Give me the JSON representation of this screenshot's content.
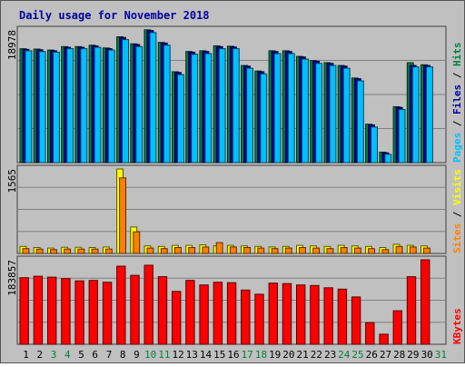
{
  "chart_data": {
    "type": "bar",
    "title": "Daily usage for November 2018",
    "categories": [
      "1",
      "2",
      "3",
      "4",
      "5",
      "6",
      "7",
      "8",
      "9",
      "10",
      "11",
      "12",
      "13",
      "14",
      "15",
      "16",
      "17",
      "18",
      "19",
      "20",
      "21",
      "22",
      "23",
      "24",
      "25",
      "26",
      "27",
      "28",
      "29",
      "30",
      "31"
    ],
    "weekend_days": [
      "3",
      "4",
      "10",
      "11",
      "17",
      "18",
      "24",
      "25",
      "31"
    ],
    "panels": [
      {
        "id": "hits",
        "max_label": "18978",
        "ylim": [
          0,
          18978
        ],
        "series": [
          {
            "name": "Hits",
            "color": "#008040",
            "values": [
              16300,
              16250,
              16100,
              16600,
              16600,
              16800,
              16400,
              18000,
              17000,
              19000,
              17200,
              13000,
              15900,
              16000,
              16700,
              16650,
              13900,
              13100,
              16000,
              16000,
              15200,
              14600,
              14300,
              13900,
              12100,
              5500,
              1500,
              8000,
              14300,
              14000,
              0
            ]
          },
          {
            "name": "Files",
            "color": "#0000a0",
            "values": [
              16200,
              16150,
              16000,
              16500,
              16500,
              16700,
              16300,
              17900,
              16900,
              18900,
              17100,
              12900,
              15800,
              15900,
              16600,
              16550,
              13800,
              13000,
              15900,
              15900,
              15100,
              14500,
              14200,
              13800,
              12000,
              5400,
              1400,
              7900,
              13900,
              13900,
              0
            ]
          },
          {
            "name": "Pages",
            "color": "#00c0ff",
            "values": [
              16000,
              15900,
              15800,
              16300,
              16300,
              16500,
              16100,
              17600,
              16600,
              18600,
              16800,
              12600,
              15500,
              15600,
              16300,
              16300,
              13500,
              12700,
              15600,
              15600,
              14800,
              14200,
              13900,
              13500,
              11700,
              5100,
              1200,
              7600,
              13700,
              13700,
              0
            ]
          }
        ],
        "legend_parts": [
          "Pages",
          "Files",
          "Hits"
        ]
      },
      {
        "id": "visits",
        "max_label": "1565",
        "ylim": [
          0,
          1565
        ],
        "series": [
          {
            "name": "Visits",
            "color": "#ffff00",
            "values": [
              130,
              110,
              100,
              115,
              115,
              110,
              120,
              1565,
              490,
              140,
              130,
              150,
              150,
              160,
              140,
              150,
              140,
              130,
              120,
              130,
              150,
              140,
              130,
              150,
              140,
              130,
              110,
              170,
              150,
              140,
              0
            ]
          },
          {
            "name": "Sites",
            "color": "#ff8000",
            "values": [
              90,
              80,
              70,
              80,
              80,
              80,
              80,
              1400,
              400,
              100,
              90,
              110,
              110,
              120,
              200,
              120,
              110,
              100,
              90,
              100,
              110,
              100,
              90,
              110,
              100,
              90,
              70,
              130,
              120,
              100,
              0
            ]
          }
        ],
        "legend_parts": [
          "Sites",
          "Visits"
        ]
      },
      {
        "id": "kbytes",
        "max_label": "183857",
        "ylim": [
          0,
          183857
        ],
        "series": [
          {
            "name": "KBytes",
            "color": "#ff0000",
            "values": [
              145000,
              148000,
              146000,
              143000,
              138000,
              139000,
              135000,
              170000,
              150000,
              172000,
              147000,
              115000,
              139000,
              129000,
              135000,
              134000,
              118000,
              109000,
              133000,
              132000,
              129000,
              128000,
              123000,
              120000,
              103000,
              47000,
              22000,
              73000,
              147000,
              183857,
              0
            ]
          }
        ],
        "legend_parts": [
          "KBytes"
        ]
      }
    ],
    "grid": true
  },
  "colors": {
    "background": "#c0c0c0",
    "panel_bg": "#c0c0c0",
    "title": "#0000a0",
    "weekday_label": "#000000",
    "weekend_label": "#008040",
    "gridline": "#808080"
  }
}
